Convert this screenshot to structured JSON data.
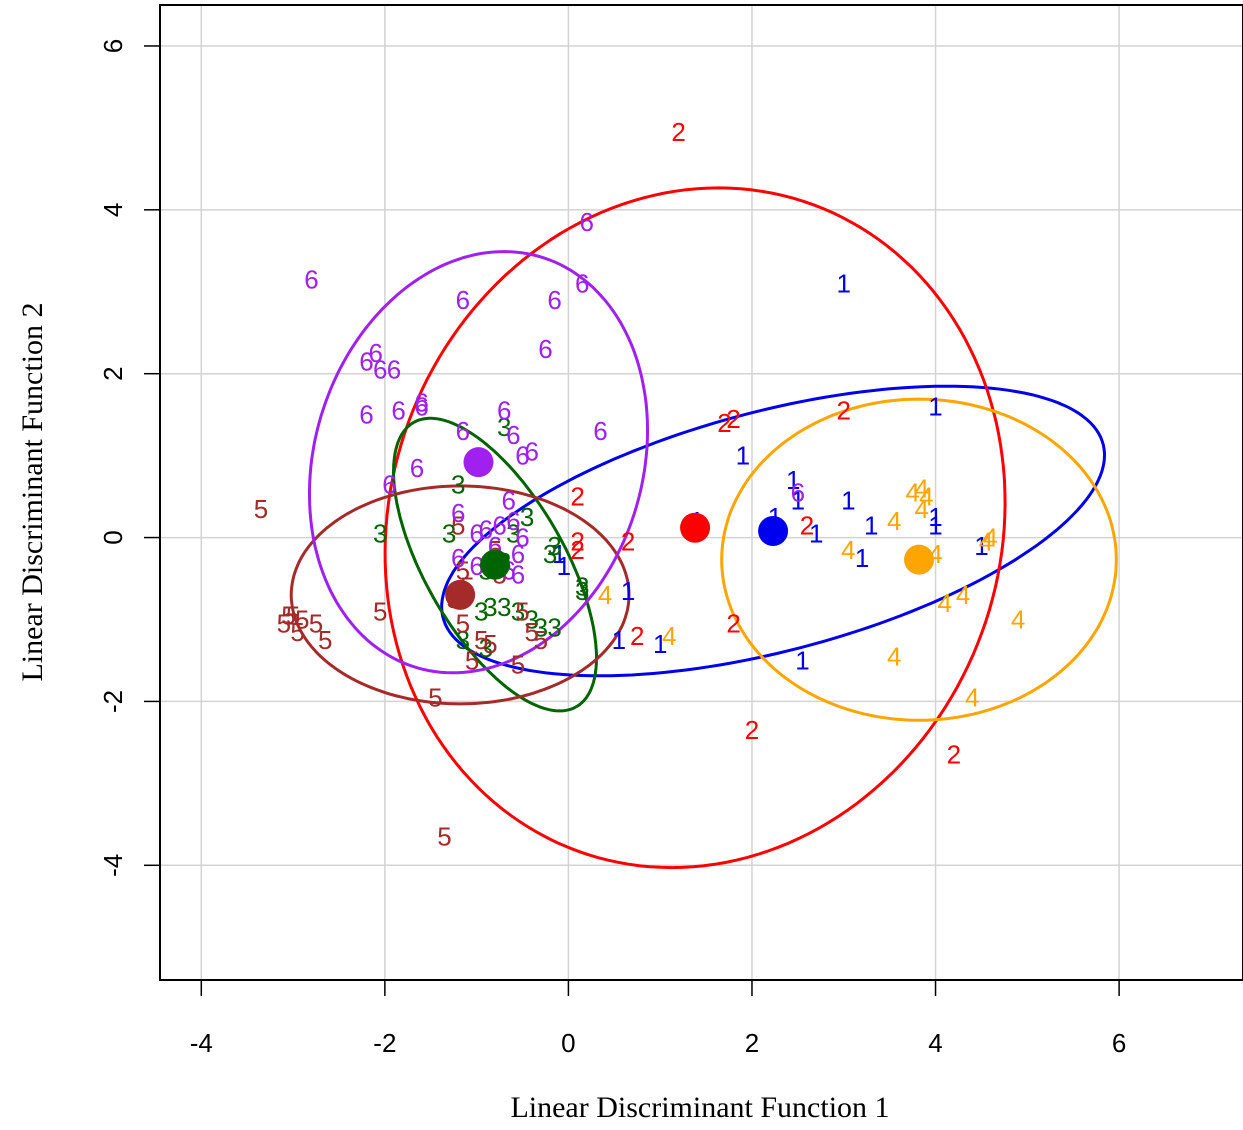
{
  "chart_data": {
    "type": "scatter",
    "title": "",
    "xlabel": "Linear Discriminant Function 1",
    "ylabel": "Linear Discriminant Function 2",
    "xlim": [
      -4.45,
      7.35
    ],
    "ylim": [
      -5.4,
      6.5
    ],
    "x_ticks": [
      -4,
      -2,
      0,
      2,
      4,
      6
    ],
    "y_ticks": [
      -4,
      -2,
      0,
      2,
      4,
      6
    ],
    "x_tick_labels": [
      "-4",
      "-2",
      "0",
      "2",
      "4",
      "6"
    ],
    "y_tick_labels": [
      "-4",
      "-2",
      "0",
      "2",
      "4",
      "6"
    ],
    "grid": true,
    "legend": "none",
    "groups": [
      {
        "label": "1",
        "color": "#0000ee",
        "centroid": [
          2.23,
          0.08
        ],
        "ellipse": {
          "center": [
            2.23,
            0.08
          ],
          "rx": 3.75,
          "ry": 1.45,
          "angle_deg": 17
        },
        "points": [
          [
            3.0,
            3.1
          ],
          [
            4.0,
            1.6
          ],
          [
            1.9,
            1.0
          ],
          [
            2.45,
            0.7
          ],
          [
            2.5,
            0.45
          ],
          [
            1.4,
            0.2
          ],
          [
            2.25,
            0.25
          ],
          [
            3.05,
            0.45
          ],
          [
            3.3,
            0.15
          ],
          [
            4.0,
            0.25
          ],
          [
            4.0,
            0.15
          ],
          [
            2.7,
            0.05
          ],
          [
            3.2,
            -0.25
          ],
          [
            4.5,
            -0.1
          ],
          [
            0.65,
            -0.65
          ],
          [
            0.55,
            -1.25
          ],
          [
            1.0,
            -1.3
          ],
          [
            2.55,
            -1.5
          ],
          [
            -0.1,
            -0.2
          ],
          [
            -0.05,
            -0.35
          ]
        ]
      },
      {
        "label": "2",
        "color": "#ff0000",
        "centroid": [
          1.38,
          0.12
        ],
        "ellipse": {
          "center": [
            1.38,
            0.12
          ],
          "rx": 3.35,
          "ry": 4.17,
          "angle_deg": -10
        },
        "points": [
          [
            1.2,
            4.95
          ],
          [
            1.7,
            1.4
          ],
          [
            1.8,
            1.45
          ],
          [
            3.0,
            1.55
          ],
          [
            0.1,
            0.5
          ],
          [
            0.1,
            -0.05
          ],
          [
            0.1,
            -0.15
          ],
          [
            0.65,
            -0.05
          ],
          [
            2.6,
            0.15
          ],
          [
            0.75,
            -1.2
          ],
          [
            1.8,
            -1.05
          ],
          [
            2.0,
            -2.35
          ],
          [
            4.2,
            -2.65
          ]
        ]
      },
      {
        "label": "3",
        "color": "#006400",
        "centroid": [
          -0.8,
          -0.33
        ],
        "ellipse": {
          "center": [
            -0.8,
            -0.33
          ],
          "rx": 1.95,
          "ry": 0.78,
          "angle_deg": -64
        },
        "points": [
          [
            -0.7,
            1.35
          ],
          [
            -1.2,
            0.65
          ],
          [
            -2.05,
            0.05
          ],
          [
            -1.3,
            0.05
          ],
          [
            -0.6,
            0.05
          ],
          [
            -0.45,
            0.25
          ],
          [
            -0.15,
            -0.1
          ],
          [
            -0.2,
            -0.2
          ],
          [
            0.15,
            -0.6
          ],
          [
            0.15,
            -0.65
          ],
          [
            -0.9,
            -0.4
          ],
          [
            -0.7,
            -0.3
          ],
          [
            -0.85,
            -0.85
          ],
          [
            -0.95,
            -0.9
          ],
          [
            -0.7,
            -0.85
          ],
          [
            -0.55,
            -0.9
          ],
          [
            -0.4,
            -1.0
          ],
          [
            -0.3,
            -1.1
          ],
          [
            -0.15,
            -1.1
          ],
          [
            -1.15,
            -1.25
          ],
          [
            -0.9,
            -1.35
          ]
        ]
      },
      {
        "label": "4",
        "color": "#ffa500",
        "centroid": [
          3.82,
          -0.27
        ],
        "ellipse": {
          "center": [
            3.82,
            -0.27
          ],
          "rx": 2.15,
          "ry": 1.96,
          "angle_deg": 0
        },
        "points": [
          [
            3.75,
            0.55
          ],
          [
            3.85,
            0.6
          ],
          [
            3.9,
            0.5
          ],
          [
            3.85,
            0.35
          ],
          [
            3.55,
            0.2
          ],
          [
            3.05,
            -0.15
          ],
          [
            4.0,
            -0.2
          ],
          [
            4.55,
            -0.05
          ],
          [
            4.6,
            0.0
          ],
          [
            4.1,
            -0.8
          ],
          [
            4.3,
            -0.7
          ],
          [
            4.9,
            -1.0
          ],
          [
            3.55,
            -1.45
          ],
          [
            4.4,
            -1.95
          ],
          [
            1.1,
            -1.2
          ],
          [
            0.4,
            -0.7
          ]
        ]
      },
      {
        "label": "5",
        "color": "#a52a2a",
        "centroid": [
          -1.18,
          -0.7
        ],
        "ellipse": {
          "center": [
            -1.18,
            -0.7
          ],
          "rx": 1.84,
          "ry": 1.33,
          "angle_deg": 0
        },
        "points": [
          [
            -3.35,
            0.35
          ],
          [
            -2.05,
            -0.9
          ],
          [
            -3.05,
            -0.95
          ],
          [
            -3.0,
            -0.95
          ],
          [
            -2.9,
            -1.0
          ],
          [
            -3.1,
            -1.05
          ],
          [
            -2.95,
            -1.15
          ],
          [
            -2.75,
            -1.05
          ],
          [
            -2.65,
            -1.25
          ],
          [
            -1.45,
            -1.95
          ],
          [
            -1.35,
            -3.65
          ],
          [
            -1.15,
            -0.4
          ],
          [
            -1.1,
            -0.6
          ],
          [
            -1.25,
            -0.75
          ],
          [
            -1.15,
            -1.05
          ],
          [
            -0.95,
            -1.25
          ],
          [
            -0.85,
            -1.3
          ],
          [
            -1.05,
            -1.5
          ],
          [
            -0.5,
            -0.9
          ],
          [
            -0.4,
            -1.15
          ],
          [
            -0.3,
            -1.25
          ],
          [
            -0.55,
            -1.55
          ],
          [
            -0.75,
            -0.45
          ],
          [
            -0.8,
            -0.15
          ],
          [
            -1.2,
            0.15
          ]
        ]
      },
      {
        "label": "6",
        "color": "#a020f0",
        "centroid": [
          -0.98,
          0.92
        ],
        "ellipse": {
          "center": [
            -0.98,
            0.92
          ],
          "rx": 1.8,
          "ry": 2.6,
          "angle_deg": -12
        },
        "points": [
          [
            0.2,
            3.85
          ],
          [
            -2.8,
            3.15
          ],
          [
            -1.15,
            2.9
          ],
          [
            -0.15,
            2.9
          ],
          [
            0.15,
            3.1
          ],
          [
            -0.25,
            2.3
          ],
          [
            -2.2,
            2.15
          ],
          [
            -2.05,
            2.05
          ],
          [
            -2.1,
            2.25
          ],
          [
            -1.9,
            2.05
          ],
          [
            -2.2,
            1.5
          ],
          [
            -1.85,
            1.55
          ],
          [
            -1.6,
            1.6
          ],
          [
            -1.6,
            1.65
          ],
          [
            -1.15,
            1.3
          ],
          [
            -0.7,
            1.55
          ],
          [
            -0.6,
            1.25
          ],
          [
            -0.4,
            1.05
          ],
          [
            -0.5,
            1.0
          ],
          [
            0.35,
            1.3
          ],
          [
            -1.65,
            0.85
          ],
          [
            -1.95,
            0.65
          ],
          [
            2.5,
            0.55
          ],
          [
            -0.65,
            0.45
          ],
          [
            -1.2,
            0.3
          ],
          [
            -1.0,
            0.05
          ],
          [
            -0.9,
            0.1
          ],
          [
            -0.75,
            0.15
          ],
          [
            -0.6,
            0.2
          ],
          [
            -0.5,
            0.0
          ],
          [
            -0.55,
            -0.2
          ],
          [
            -0.8,
            -0.1
          ],
          [
            -1.2,
            -0.25
          ],
          [
            -1.0,
            -0.35
          ],
          [
            -0.65,
            -0.4
          ],
          [
            -0.55,
            -0.45
          ]
        ]
      }
    ]
  }
}
